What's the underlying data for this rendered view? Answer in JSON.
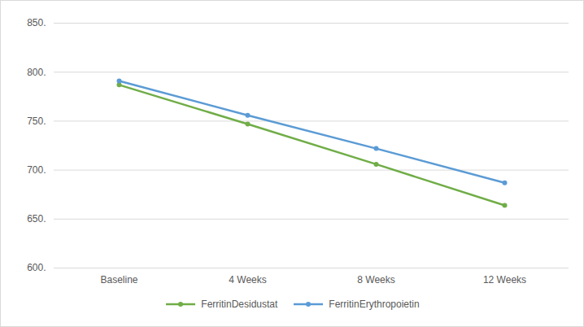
{
  "chart_data": {
    "type": "line",
    "categories": [
      "Baseline",
      "4 Weeks",
      "8 Weeks",
      "12 Weeks"
    ],
    "series": [
      {
        "name": "FerritinDesidustat",
        "color": "#70ad47",
        "marker": "circle",
        "values": [
          787,
          747,
          706,
          664
        ]
      },
      {
        "name": "FerritinErythropoietin",
        "color": "#5b9bd5",
        "marker": "circle",
        "values": [
          791,
          756,
          722,
          687
        ]
      }
    ],
    "ylim": [
      600,
      850
    ],
    "yticks": [
      {
        "value": 600,
        "label": "600."
      },
      {
        "value": 650,
        "label": "650."
      },
      {
        "value": 700,
        "label": "700."
      },
      {
        "value": 750,
        "label": "750."
      },
      {
        "value": 800,
        "label": "800."
      },
      {
        "value": 850,
        "label": "850."
      }
    ],
    "grid": true,
    "legend": "bottom"
  }
}
